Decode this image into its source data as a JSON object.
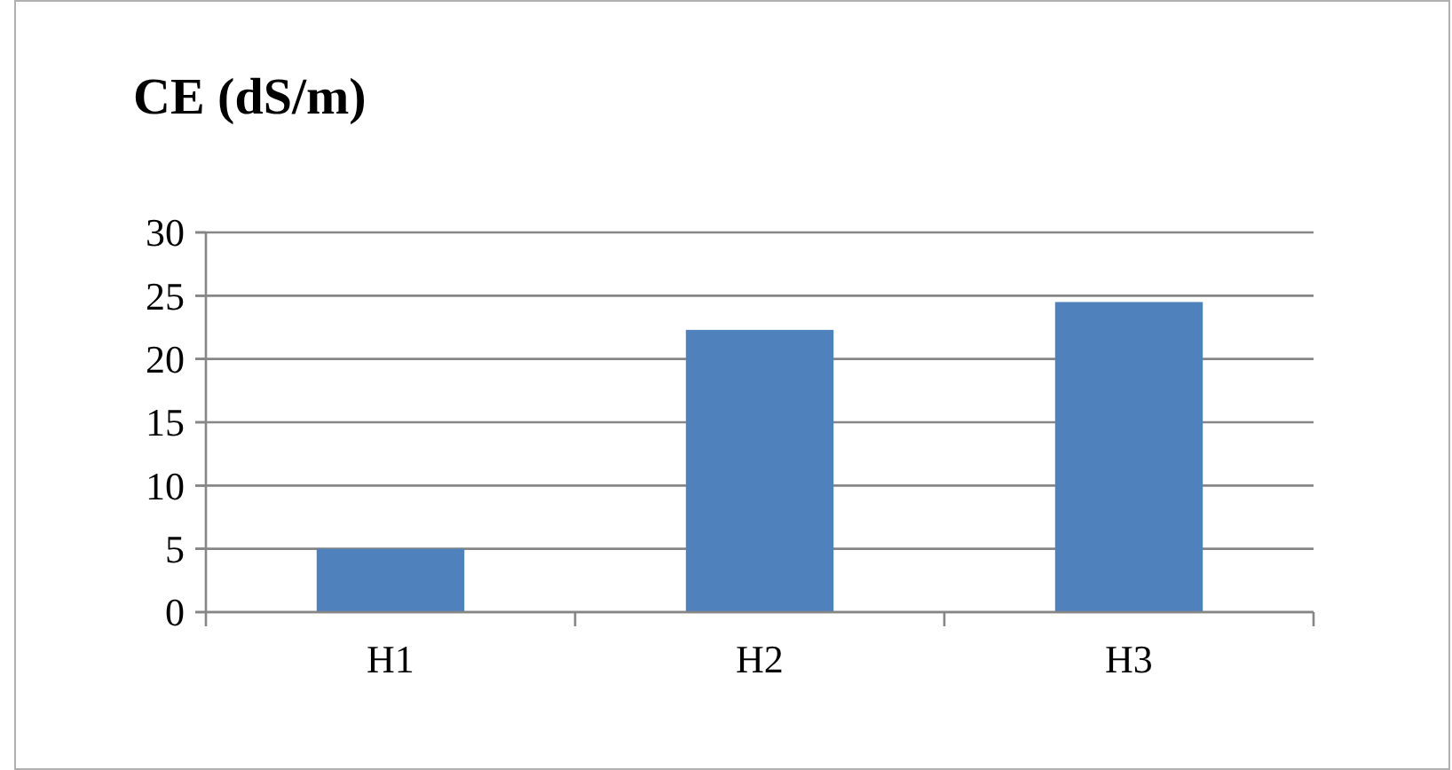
{
  "chart_data": {
    "type": "bar",
    "title": "CE (dS/m)",
    "categories": [
      "H1",
      "H2",
      "H3"
    ],
    "values": [
      5,
      22.3,
      24.5
    ],
    "color": "#4f81bd",
    "ylim": [
      0,
      30
    ],
    "yticks": [
      0,
      5,
      10,
      15,
      20,
      25,
      30
    ],
    "grid": "y"
  }
}
